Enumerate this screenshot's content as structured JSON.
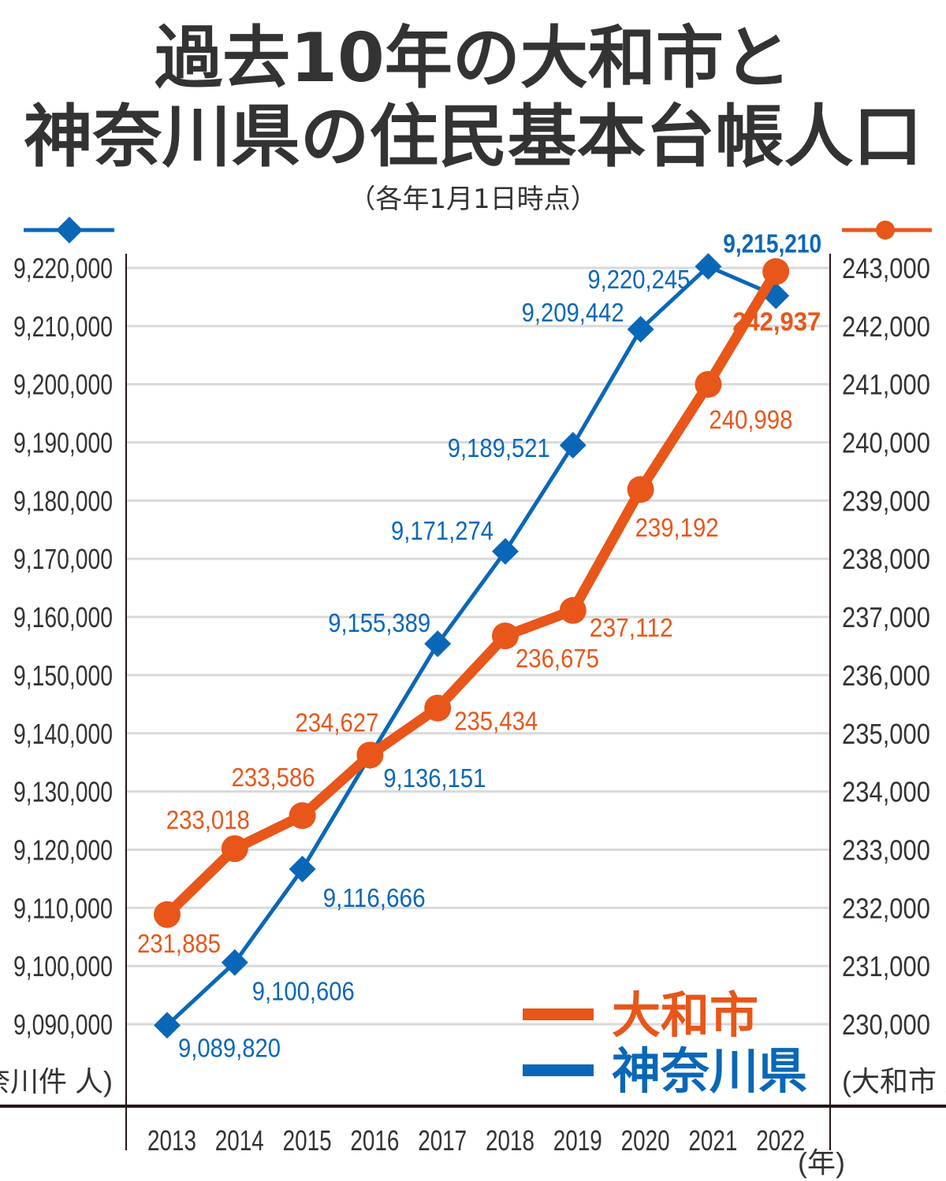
{
  "colors": {
    "kanagawa": "#0a67b7",
    "yamato": "#e8561a",
    "text": "#333333",
    "grid": "#d9d9d9"
  },
  "chart_data": {
    "type": "line",
    "title": "過去10年の大和市と",
    "title_line2": "神奈川県の住民基本台帳人口",
    "subtitle": "（各年1月1日時点）",
    "x": [
      "2013",
      "2014",
      "2015",
      "2016",
      "2017",
      "2018",
      "2019",
      "2020",
      "2021",
      "2022"
    ],
    "xunit": "(年)",
    "left_axis": {
      "label": "(神奈川件 人)",
      "ylim": [
        9090000,
        9220000
      ],
      "ticks": [
        "9,220,000",
        "9,210,000",
        "9,200,000",
        "9,190,000",
        "9,180,000",
        "9,170,000",
        "9,160,000",
        "9,150,000",
        "9,140,000",
        "9,130,000",
        "9,120,000",
        "9,110,000",
        "9,100,000",
        "9,090,000"
      ]
    },
    "right_axis": {
      "label": "(大和市 人)",
      "ylim": [
        230000,
        243000
      ],
      "ticks": [
        "243,000",
        "242,000",
        "241,000",
        "240,000",
        "239,000",
        "238,000",
        "237,000",
        "236,000",
        "235,000",
        "234,000",
        "233,000",
        "232,000",
        "231,000",
        "230,000"
      ]
    },
    "grid": true,
    "legend_placement": "bottom-right",
    "series": [
      {
        "name": "神奈川県",
        "axis": "left",
        "marker": "diamond",
        "values": [
          9089820,
          9100606,
          9116666,
          9136151,
          9155389,
          9171274,
          9189521,
          9209442,
          9220245,
          9215210
        ],
        "labels": [
          "9,089,820",
          "9,100,606",
          "9,116,666",
          "9,136,151",
          "9,155,389",
          "9,171,274",
          "9,189,521",
          "9,209,442",
          "9,220,245",
          "9,215,210"
        ]
      },
      {
        "name": "大和市",
        "axis": "right",
        "marker": "circle",
        "values": [
          231885,
          233018,
          233586,
          234627,
          235434,
          236675,
          237112,
          239192,
          240998,
          242937
        ],
        "labels": [
          "231,885",
          "233,018",
          "233,586",
          "234,627",
          "235,434",
          "236,675",
          "237,112",
          "239,192",
          "240,998",
          "242,937"
        ]
      }
    ]
  }
}
